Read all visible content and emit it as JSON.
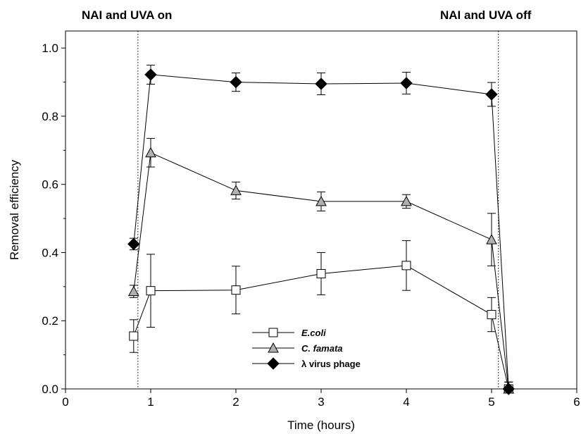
{
  "chart_data": {
    "type": "line",
    "xlabel": "Time (hours)",
    "ylabel": "Removal efficiency",
    "xlim": [
      0,
      6
    ],
    "ylim": [
      0,
      1.05
    ],
    "x_ticks": [
      "0",
      "1",
      "2",
      "3",
      "4",
      "5",
      "6"
    ],
    "y_ticks": [
      "0.0",
      "0.2",
      "0.4",
      "0.6",
      "0.8",
      "1.0"
    ],
    "grid": false,
    "legend_position": "bottom-center",
    "annotations": [
      {
        "text": "NAI and UVA on",
        "x": 0.85
      },
      {
        "text": "NAI and UVA off",
        "x": 5.08
      }
    ],
    "series": [
      {
        "name": "E.coli",
        "marker": "square-open",
        "color": "#ffffff",
        "x": [
          0.8,
          1,
          2,
          3,
          4,
          5,
          5.2
        ],
        "y": [
          0.155,
          0.288,
          0.29,
          0.338,
          0.362,
          0.218,
          0.0
        ],
        "err": [
          0.048,
          0.107,
          0.07,
          0.062,
          0.073,
          0.05,
          0.02
        ]
      },
      {
        "name": "C. famata",
        "marker": "triangle",
        "color": "#b0b0b0",
        "x": [
          0.8,
          1,
          2,
          3,
          4,
          5,
          5.2
        ],
        "y": [
          0.286,
          0.693,
          0.582,
          0.55,
          0.55,
          0.438,
          0.0
        ],
        "err": [
          0.018,
          0.042,
          0.025,
          0.028,
          0.02,
          0.077,
          0.02
        ]
      },
      {
        "name": "λ virus phage",
        "marker": "diamond",
        "color": "#000000",
        "x": [
          0.8,
          1,
          2,
          3,
          4,
          5,
          5.2
        ],
        "y": [
          0.425,
          0.922,
          0.9,
          0.895,
          0.897,
          0.864,
          0.0
        ],
        "err": [
          0.017,
          0.028,
          0.027,
          0.032,
          0.032,
          0.035,
          0.02
        ]
      }
    ]
  }
}
